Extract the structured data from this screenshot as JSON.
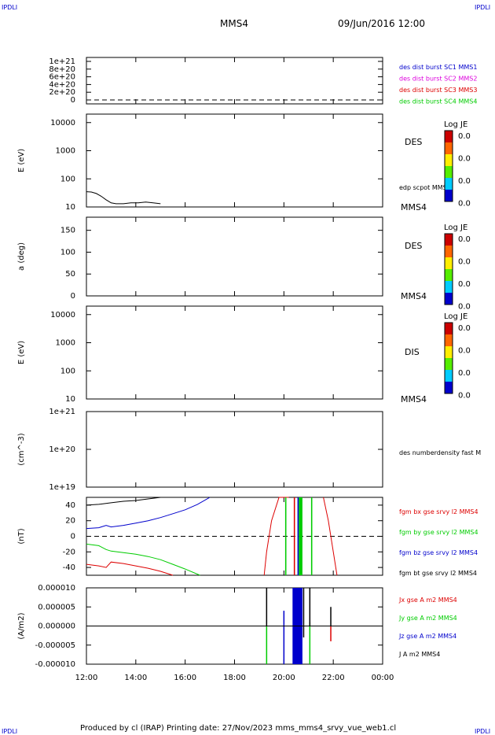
{
  "header": {
    "corner_left": "IPDLI",
    "corner_right": "IPDLI",
    "spacecraft": "MMS4",
    "datetime": "09/Jun/2016 12:00",
    "footer_left": "IPDLI",
    "footer_right": "IPDLI",
    "footer": "Produced by cl (IRAP)   Printing date: 27/Nov/2023   mms_mms4_srvy_vue_web1.cl"
  },
  "colors": {
    "black": "#000000",
    "red": "#dd0000",
    "green": "#00cc00",
    "blue": "#0000cc",
    "magenta": "#dd00dd",
    "dashed": "#000000"
  },
  "chart_data": [
    {
      "type": "line",
      "ylabel": "",
      "yticks": [
        "1e+21",
        "8e+20",
        "6e+20",
        "4e+20",
        "2e+20",
        "0"
      ],
      "legend": [
        {
          "text": "des dist burst SC1 MMS1",
          "color": "#0000cc"
        },
        {
          "text": "des dist burst SC2 MMS2",
          "color": "#dd00dd"
        },
        {
          "text": "des dist burst SC3 MMS3",
          "color": "#dd0000"
        },
        {
          "text": "des dist burst SC4 MMS4",
          "color": "#00cc00"
        }
      ],
      "zero_line": true
    },
    {
      "type": "line",
      "ylabel": "E (eV)",
      "scale": "log",
      "yticks": [
        "10000",
        "1000",
        "100",
        "10"
      ],
      "ylim": [
        10,
        20000
      ],
      "side_label": "DES",
      "series_label": "edp scpot MMS4",
      "corner_label": "MMS4",
      "colorbar": {
        "title": "Log JE",
        "ticks": [
          "0.0",
          "0.0",
          "0.0",
          "0.0"
        ]
      },
      "series": [
        {
          "name": "edp scpot MMS4",
          "color": "#000000",
          "x": [
            12.0,
            12.2,
            12.4,
            12.6,
            12.8,
            13.0,
            13.2,
            13.5,
            13.8,
            14.1,
            14.4,
            14.7,
            15.0
          ],
          "y": [
            35,
            34,
            30,
            24,
            18,
            14,
            13,
            13,
            14,
            14,
            15,
            14,
            13
          ]
        }
      ]
    },
    {
      "type": "heatmap",
      "ylabel": "a (deg)",
      "yticks": [
        "150",
        "100",
        "50",
        "0"
      ],
      "ylim": [
        0,
        180
      ],
      "side_label": "DES",
      "corner_label": "MMS4",
      "colorbar": {
        "title": "Log JE",
        "ticks": [
          "0.0",
          "0.0",
          "0.0",
          "0.0"
        ]
      }
    },
    {
      "type": "heatmap",
      "ylabel": "E (eV)",
      "scale": "log",
      "yticks": [
        "10000",
        "1000",
        "100",
        "10"
      ],
      "ylim": [
        10,
        20000
      ],
      "side_label": "DIS",
      "corner_label": "MMS4",
      "colorbar": {
        "title": "Log JE",
        "ticks": [
          "0.0",
          "0.0",
          "0.0",
          "0.0"
        ]
      }
    },
    {
      "type": "line",
      "ylabel": "(cm^-3)",
      "scale": "log",
      "yticks": [
        "1e+21",
        "1e+20",
        "1e+19"
      ],
      "series_label": "des numberdensity fast M"
    },
    {
      "type": "line",
      "ylabel": "(nT)",
      "ylim": [
        -50,
        50
      ],
      "yticks": [
        "40",
        "20",
        "0",
        "-20",
        "-40"
      ],
      "zero_line": true,
      "legend": [
        {
          "text": "fgm bx gse srvy l2 MMS4",
          "color": "#dd0000"
        },
        {
          "text": "fgm by gse srvy l2 MMS4",
          "color": "#00cc00"
        },
        {
          "text": "fgm bz gse srvy l2 MMS4",
          "color": "#0000cc"
        },
        {
          "text": "fgm bt gse srvy l2 MMS4",
          "color": "#000000"
        }
      ],
      "series": [
        {
          "name": "fgm bt gse srvy l2 MMS4",
          "color": "#000000",
          "x": [
            12.0,
            12.5,
            13.0,
            13.5,
            14.0,
            14.5,
            15.0
          ],
          "y": [
            40,
            41,
            43,
            45,
            46,
            48,
            50
          ]
        },
        {
          "name": "fgm bz gse srvy l2 MMS4",
          "color": "#0000cc",
          "x": [
            12.0,
            12.5,
            12.8,
            13.0,
            13.5,
            14.0,
            14.5,
            15.0,
            15.5,
            16.0,
            16.5,
            17.0
          ],
          "y": [
            10,
            11,
            14,
            12,
            14,
            17,
            20,
            24,
            29,
            34,
            41,
            50
          ]
        },
        {
          "name": "fgm by gse srvy l2 MMS4",
          "color": "#00cc00",
          "x": [
            12.0,
            12.5,
            12.8,
            13.0,
            13.5,
            14.0,
            14.5,
            15.0,
            15.5,
            16.0,
            16.6
          ],
          "y": [
            -10,
            -12,
            -17,
            -19,
            -21,
            -23,
            -26,
            -30,
            -36,
            -42,
            -50
          ]
        },
        {
          "name": "fgm bx gse srvy l2 MMS4",
          "color": "#dd0000",
          "x": [
            12.0,
            12.5,
            12.8,
            13.0,
            13.5,
            14.0,
            14.5,
            15.0,
            15.5
          ],
          "y": [
            -36,
            -38,
            -40,
            -33,
            -35,
            -38,
            -41,
            -45,
            -50
          ]
        },
        {
          "name": "fgm bx gse srvy l2 MMS4",
          "color": "#dd0000",
          "x": [
            19.2,
            19.3,
            19.5,
            19.8,
            20.2
          ],
          "y": [
            -50,
            -20,
            20,
            50,
            50
          ]
        },
        {
          "name": "fgm bx gse srvy l2 MMS4",
          "color": "#dd0000",
          "x": [
            21.6,
            21.8,
            22.0,
            22.15
          ],
          "y": [
            50,
            20,
            -20,
            -50
          ]
        }
      ],
      "bands": [
        {
          "color": "#00cc00",
          "x": [
            20.05,
            20.1
          ]
        },
        {
          "color": "#00cc00",
          "x": [
            20.6,
            20.75
          ]
        },
        {
          "color": "#00cc00",
          "x": [
            21.1,
            21.15
          ]
        },
        {
          "color": "#dd0000",
          "x": [
            20.4,
            20.45
          ]
        },
        {
          "color": "#0000cc",
          "x": [
            20.55,
            20.6
          ]
        }
      ]
    },
    {
      "type": "line",
      "ylabel": "(A/m2)",
      "ylim": [
        -1e-05,
        1e-05
      ],
      "yticks": [
        "0.000010",
        "0.000005",
        "0.000000",
        "-0.000005",
        "-0.000010"
      ],
      "xticks": [
        "12:00",
        "14:00",
        "16:00",
        "18:00",
        "20:00",
        "22:00",
        "00:00"
      ],
      "xlim": [
        12,
        24
      ],
      "legend": [
        {
          "text": "Jx gse A m2 MMS4",
          "color": "#dd0000"
        },
        {
          "text": "Jy gse A m2 MMS4",
          "color": "#00cc00"
        },
        {
          "text": "Jz gse A m2 MMS4",
          "color": "#0000cc"
        },
        {
          "text": "J A m2 MMS4",
          "color": "#000000"
        }
      ],
      "bands": [
        {
          "color": "#0000cc",
          "x": [
            20.35,
            20.75
          ]
        }
      ],
      "spikes": [
        {
          "color": "#000000",
          "x": 19.3,
          "y": [
            0,
            1e-05
          ]
        },
        {
          "color": "#00cc00",
          "x": 19.3,
          "y": [
            -1e-05,
            0
          ]
        },
        {
          "color": "#0000cc",
          "x": 20.0,
          "y": [
            -1e-05,
            4e-06
          ]
        },
        {
          "color": "#000000",
          "x": 20.8,
          "y": [
            -3e-06,
            1e-05
          ]
        },
        {
          "color": "#00cc00",
          "x": 21.05,
          "y": [
            -1e-05,
            1e-06
          ]
        },
        {
          "color": "#000000",
          "x": 21.05,
          "y": [
            0,
            1e-05
          ]
        },
        {
          "color": "#dd0000",
          "x": 21.9,
          "y": [
            -4e-06,
            0
          ]
        },
        {
          "color": "#000000",
          "x": 21.9,
          "y": [
            0,
            5e-06
          ]
        }
      ]
    }
  ]
}
